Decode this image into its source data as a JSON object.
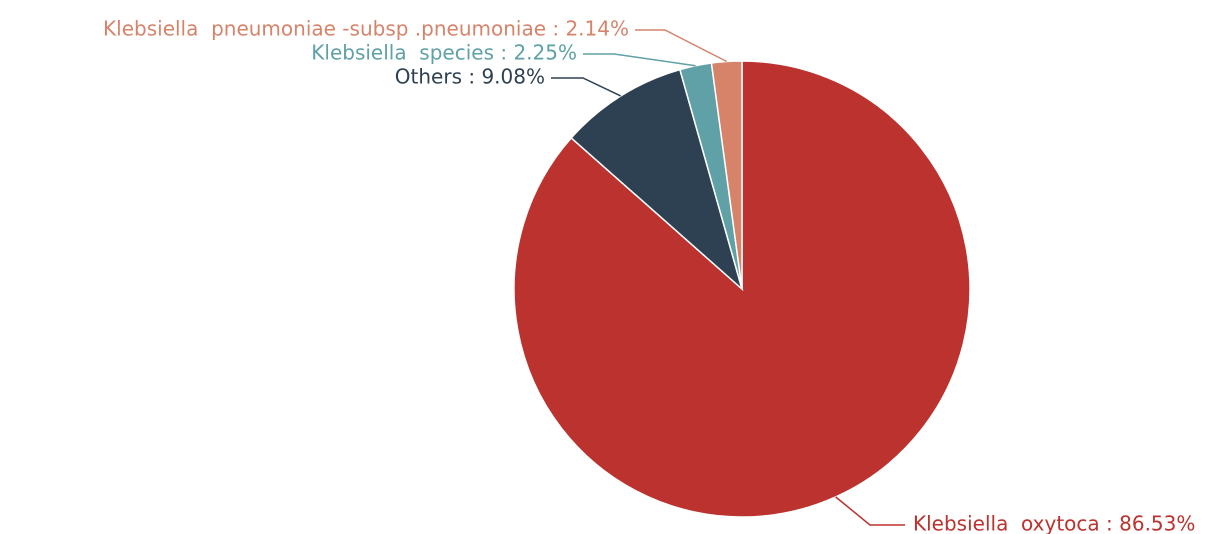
{
  "chart_data": {
    "type": "pie",
    "title": "",
    "start_angle": "top",
    "direction": "clockwise",
    "slices": [
      {
        "label": "Klebsiella  oxytoca : 86.53%",
        "value": 86.53,
        "color": "#bb322e"
      },
      {
        "label": "Others : 9.08%",
        "value": 9.08,
        "color": "#2e4153"
      },
      {
        "label": "Klebsiella  species : 2.25%",
        "value": 2.25,
        "color": "#5fa1a6"
      },
      {
        "label": "Klebsiella  pneumoniae -subsp .pneumoniae : 2.14%",
        "value": 2.14,
        "color": "#d6836a"
      }
    ]
  }
}
